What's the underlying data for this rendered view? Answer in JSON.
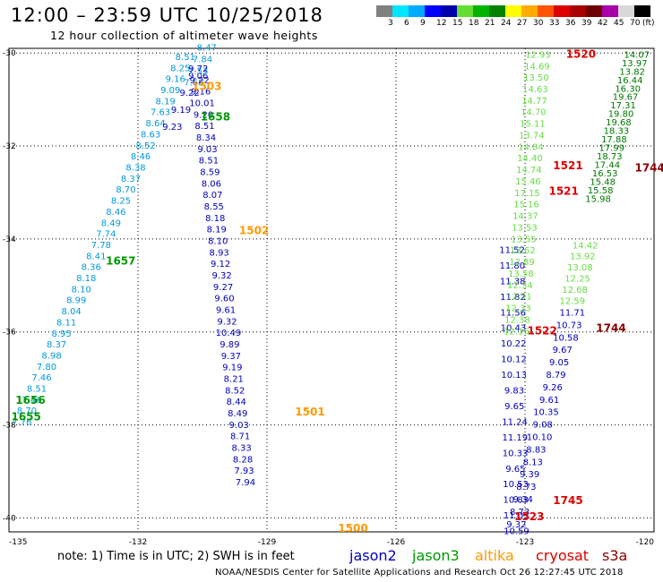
{
  "title": "12:00 – 23:59 UTC 10/25/2018",
  "subtitle": "12 hour collection of altimeter wave heights",
  "colorbar": {
    "unit": "(ft)",
    "swatches": [
      "#808080",
      "#00e6ff",
      "#00aaff",
      "#0000ff",
      "#0000aa",
      "#66dd33",
      "#00b400",
      "#008200",
      "#ffff00",
      "#ffaa00",
      "#ff5500",
      "#dd0000",
      "#aa0000",
      "#6e0000",
      "#aa00aa",
      "#d8d8d8",
      "#000000"
    ],
    "labels": [
      "3",
      "6",
      "9",
      "12",
      "15",
      "18",
      "21",
      "24",
      "27",
      "30",
      "33",
      "36",
      "39",
      "42",
      "45",
      "70"
    ]
  },
  "axes": {
    "y_ticks": [
      "-30",
      "-32",
      "-34",
      "-36",
      "-38",
      "-40"
    ],
    "x_ticks": [
      "-135",
      "-132",
      "-129",
      "-126",
      "-123",
      "-120"
    ]
  },
  "colors": {
    "jason2": "#0000bb",
    "jason3": "#009900",
    "altika": "#ff9900",
    "cryosat": "#dd0000",
    "s3a": "#880000",
    "light_blue": "#0099dd",
    "light_green": "#66dd44",
    "dark_green": "#007700"
  },
  "tracks": [
    {
      "name": "altika-western",
      "color": "light_blue",
      "lat_start": -30.15,
      "lat_end": -38.0,
      "lon_start": -130.9,
      "lon_end": -134.7,
      "values": [
        "8.51",
        "8.25",
        "9.16",
        "9.09",
        "8.19",
        "7.63",
        "8.64",
        "8.63",
        "8.52",
        "8.46",
        "8.38",
        "8.37",
        "8.70",
        "8.25",
        "8.46",
        "8.49",
        "7.74",
        "7.78",
        "8.41",
        "8.36",
        "8.18",
        "8.10",
        "8.99",
        "8.04",
        "8.11",
        "8.95",
        "8.37",
        "8.98",
        "7.80",
        "7.46",
        "8.51",
        "7.46",
        "8.70",
        "7.76"
      ]
    },
    {
      "name": "jason2-western-a",
      "color": "jason2",
      "lat_start": -30.55,
      "lat_end": -31.65,
      "lon_start": -130.6,
      "lon_end": -131.2,
      "values": [
        "9.06",
        "9.22",
        "9.19",
        "9.23"
      ]
    },
    {
      "name": "altika-upper",
      "color": "light_blue",
      "lat_start": -29.95,
      "lat_end": -30.7,
      "lon_start": -130.4,
      "lon_end": -130.7,
      "values": [
        "8.47",
        "7.84",
        "7.53",
        "7.68"
      ]
    },
    {
      "name": "jason2-middle",
      "color": "jason2",
      "lat_start": -30.4,
      "lat_end": -39.3,
      "lon_start": -130.6,
      "lon_end": -129.5,
      "values": [
        "9.72",
        "9.22",
        "9.16",
        "10.01",
        "9.20",
        "8.51",
        "8.34",
        "9.03",
        "8.51",
        "8.59",
        "8.06",
        "8.07",
        "8.55",
        "8.18",
        "8.19",
        "8.10",
        "8.93",
        "9.12",
        "9.32",
        "9.27",
        "9.60",
        "9.61",
        "9.32",
        "10.49",
        "9.89",
        "9.37",
        "9.19",
        "8.21",
        "8.52",
        "8.44",
        "8.49",
        "9.03",
        "8.71",
        "8.33",
        "8.28",
        "7.93",
        "7.94"
      ]
    },
    {
      "name": "jason2-eastern",
      "color": "jason2",
      "lat_start": -34.3,
      "lat_end": -40.35,
      "lon_start": -123.3,
      "lon_end": -123.2,
      "values": [
        "11.52",
        "11.80",
        "11.38",
        "11.82",
        "11.56",
        "10.43",
        "10.22",
        "10.12",
        "10.13",
        "9.83",
        "9.65",
        "11.24",
        "11.19",
        "10.33",
        "9.65",
        "10.53",
        "10.83",
        "11.05",
        "10.59"
      ]
    },
    {
      "name": "jason3-light",
      "color": "light_green",
      "lat_start": -30.1,
      "lat_end": -36.05,
      "lon_start": -122.7,
      "lon_end": -123.2,
      "values": [
        "12.93",
        "14.69",
        "13.50",
        "14.63",
        "14.77",
        "14.70",
        "15.11",
        "13.74",
        "14.84",
        "14.40",
        "14.74",
        "15.46",
        "17.15",
        "15.16",
        "14.37",
        "13.53",
        "13.55",
        "13.62",
        "13.89",
        "13.58",
        "12.34",
        "12.51",
        "12.33",
        "12.38",
        "12.16"
      ]
    },
    {
      "name": "jason3-dark",
      "color": "dark_green",
      "lat_start": -30.1,
      "lat_end": -33.2,
      "lon_start": -120.4,
      "lon_end": -121.3,
      "values": [
        "14.07",
        "13.97",
        "13.82",
        "16.44",
        "16.30",
        "19.67",
        "17.31",
        "19.80",
        "19.68",
        "18.33",
        "17.88",
        "17.99",
        "18.73",
        "17.44",
        "16.53",
        "15.48",
        "15.58",
        "15.98"
      ]
    },
    {
      "name": "jason3-light-lower",
      "color": "light_green",
      "lat_start": -34.2,
      "lat_end": -35.4,
      "lon_start": -121.6,
      "lon_end": -121.9,
      "values": [
        "14.42",
        "13.92",
        "13.08",
        "12.25",
        "12.68",
        "12.59"
      ]
    },
    {
      "name": "jason2-lower-east",
      "color": "jason2",
      "lat_start": -35.65,
      "lat_end": -40.2,
      "lon_start": -121.9,
      "lon_end": -123.2,
      "values": [
        "11.71",
        "10.73",
        "10.58",
        "9.67",
        "9.05",
        "8.79",
        "9.26",
        "9.61",
        "10.35",
        "9.08",
        "10.10",
        "8.83",
        "8.13",
        "9.39",
        "8.73",
        "9.34",
        "8.73",
        "9.32"
      ]
    }
  ],
  "time_labels": [
    {
      "text": "1503",
      "color": "altika",
      "lat": -30.8,
      "lon": -130.4
    },
    {
      "text": "1658",
      "color": "jason3",
      "lat": -31.45,
      "lon": -130.2
    },
    {
      "text": "1502",
      "color": "altika",
      "lat": -33.9,
      "lon": -129.3
    },
    {
      "text": "1657",
      "color": "jason3",
      "lat": -34.55,
      "lon": -132.4
    },
    {
      "text": "1656",
      "color": "jason3",
      "lat": -37.55,
      "lon": -134.5
    },
    {
      "text": "1655",
      "color": "jason3",
      "lat": -37.9,
      "lon": -134.6
    },
    {
      "text": "1501",
      "color": "altika",
      "lat": -37.8,
      "lon": -128.0
    },
    {
      "text": "1500",
      "color": "altika",
      "lat": -40.3,
      "lon": -127.0
    },
    {
      "text": "1520",
      "color": "cryosat",
      "lat": -30.1,
      "lon": -121.7
    },
    {
      "text": "1521",
      "color": "cryosat",
      "lat": -32.5,
      "lon": -122.0
    },
    {
      "text": "1521",
      "color": "cryosat",
      "lat": -33.05,
      "lon": -122.1
    },
    {
      "text": "1522",
      "color": "cryosat",
      "lat": -36.05,
      "lon": -122.6
    },
    {
      "text": "1523",
      "color": "cryosat",
      "lat": -40.05,
      "lon": -122.9
    },
    {
      "text": "1745",
      "color": "cryosat",
      "lat": -39.7,
      "lon": -122.0
    },
    {
      "text": "1744",
      "color": "s3a",
      "lat": -36.0,
      "lon": -121.0
    },
    {
      "text": "1744",
      "color": "s3a",
      "lat": -32.55,
      "lon": -120.1
    }
  ],
  "legend": {
    "note": "note: 1) Time is in UTC; 2) SWH is in feet",
    "satellites": [
      {
        "label": "jason2",
        "color": "jason2"
      },
      {
        "label": "jason3",
        "color": "jason3"
      },
      {
        "label": "altika",
        "color": "altika"
      },
      {
        "label": "cryosat",
        "color": "cryosat"
      },
      {
        "label": "s3a",
        "color": "s3a"
      }
    ]
  },
  "credit": "NOAA/NESDIS Center for Satellite Applications and Research    Oct 26 12:27:45 UTC 2018"
}
